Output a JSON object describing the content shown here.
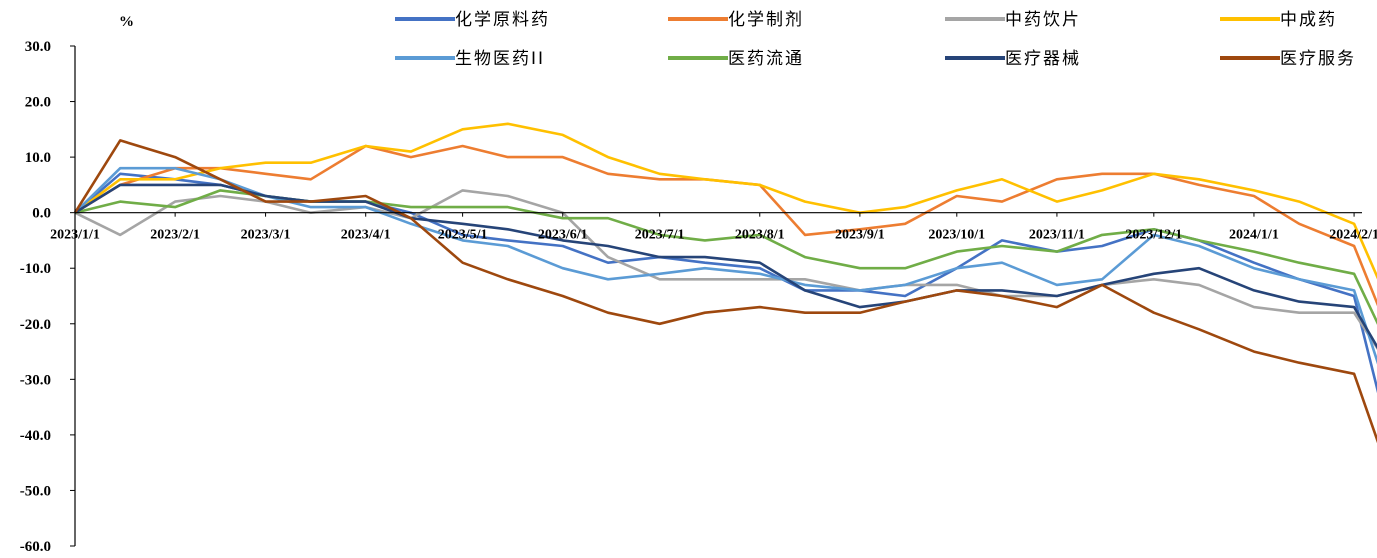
{
  "chart_data": {
    "type": "line",
    "title": "",
    "ylabel": "%",
    "ylim": [
      -60,
      30
    ],
    "yticks": [
      "30.0",
      "20.0",
      "10.0",
      "0.0",
      "-10.0",
      "-20.0",
      "-30.0",
      "-40.0",
      "-50.0",
      "-60.0"
    ],
    "ytick_values": [
      30,
      20,
      10,
      0,
      -10,
      -20,
      -30,
      -40,
      -50,
      -60
    ],
    "xticks": [
      "2023/1/1",
      "2023/2/1",
      "2023/3/1",
      "2023/4/1",
      "2023/5/1",
      "2023/6/1",
      "2023/7/1",
      "2023/8/1",
      "2023/9/1",
      "2023/10/1",
      "2023/11/1",
      "2023/12/1",
      "2024/1/1",
      "2024/2/1"
    ],
    "x": [
      "2023/1/1",
      "2023/1/15",
      "2023/2/1",
      "2023/2/15",
      "2023/3/1",
      "2023/3/15",
      "2023/4/1",
      "2023/4/15",
      "2023/5/1",
      "2023/5/15",
      "2023/6/1",
      "2023/6/15",
      "2023/7/1",
      "2023/7/15",
      "2023/8/1",
      "2023/8/15",
      "2023/9/1",
      "2023/9/15",
      "2023/10/1",
      "2023/10/15",
      "2023/11/1",
      "2023/11/15",
      "2023/12/1",
      "2023/12/15",
      "2024/1/1",
      "2024/1/15",
      "2024/2/1",
      "2024/2/10",
      "2024/2/20",
      "2024/2/29"
    ],
    "grid": false,
    "legend_position": "top",
    "series": [
      {
        "name": "化学原料药",
        "color": "#4472C4",
        "values": [
          0,
          7,
          6,
          5,
          3,
          2,
          2,
          0,
          -4,
          -5,
          -6,
          -9,
          -8,
          -9,
          -10,
          -14,
          -14,
          -15,
          -10,
          -5,
          -7,
          -6,
          -3,
          -5,
          -9,
          -12,
          -15,
          -36,
          -27,
          -27
        ]
      },
      {
        "name": "化学制剂",
        "color": "#ED7D31",
        "values": [
          0,
          5,
          8,
          8,
          7,
          6,
          12,
          10,
          12,
          10,
          10,
          7,
          6,
          6,
          5,
          -4,
          -3,
          -2,
          3,
          2,
          6,
          7,
          7,
          5,
          3,
          -2,
          -6,
          -19,
          -9,
          -9
        ]
      },
      {
        "name": "中药饮片",
        "color": "#A5A5A5",
        "values": [
          0,
          -4,
          2,
          3,
          2,
          0,
          1,
          -1,
          4,
          3,
          0,
          -8,
          -12,
          -12,
          -12,
          -12,
          -14,
          -13,
          -13,
          -15,
          -15,
          -13,
          -12,
          -13,
          -17,
          -18,
          -18,
          -26,
          -24,
          -24
        ]
      },
      {
        "name": "中成药",
        "color": "#FFC000",
        "values": [
          0,
          6,
          6,
          8,
          9,
          9,
          12,
          11,
          15,
          16,
          14,
          10,
          7,
          6,
          5,
          2,
          0,
          1,
          4,
          6,
          2,
          4,
          7,
          6,
          4,
          2,
          -2,
          -14,
          -6,
          -6
        ]
      },
      {
        "name": "生物医药II",
        "color": "#5B9BD5",
        "values": [
          0,
          8,
          8,
          6,
          3,
          1,
          1,
          -2,
          -5,
          -6,
          -10,
          -12,
          -11,
          -10,
          -11,
          -13,
          -14,
          -13,
          -10,
          -9,
          -13,
          -12,
          -4,
          -6,
          -10,
          -12,
          -14,
          -30,
          -20,
          -20
        ]
      },
      {
        "name": "医药流通",
        "color": "#70AD47",
        "values": [
          0,
          2,
          1,
          4,
          3,
          2,
          2,
          1,
          1,
          1,
          -1,
          -1,
          -4,
          -5,
          -4,
          -8,
          -10,
          -10,
          -7,
          -6,
          -7,
          -4,
          -3,
          -5,
          -7,
          -9,
          -11,
          -22,
          -15,
          -15
        ]
      },
      {
        "name": "医疗器械",
        "color": "#264478",
        "values": [
          0,
          5,
          5,
          5,
          3,
          2,
          2,
          -1,
          -2,
          -3,
          -5,
          -6,
          -8,
          -8,
          -9,
          -14,
          -17,
          -16,
          -14,
          -14,
          -15,
          -13,
          -11,
          -10,
          -14,
          -16,
          -17,
          -26,
          -18,
          -18
        ]
      },
      {
        "name": "医疗服务",
        "color": "#9E480E",
        "values": [
          0,
          13,
          10,
          6,
          2,
          2,
          3,
          -1,
          -9,
          -12,
          -15,
          -18,
          -20,
          -18,
          -17,
          -18,
          -18,
          -16,
          -14,
          -15,
          -17,
          -13,
          -18,
          -21,
          -25,
          -27,
          -29,
          -44,
          -40,
          -40
        ]
      }
    ]
  }
}
